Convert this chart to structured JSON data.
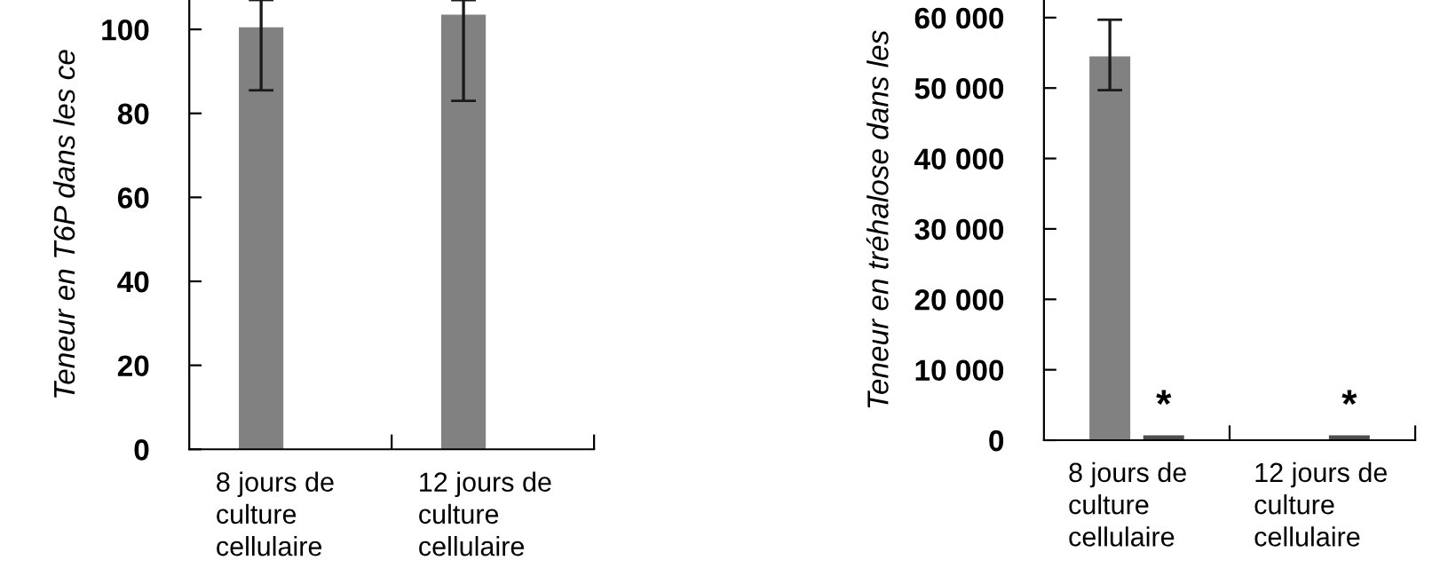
{
  "chart_data": [
    {
      "type": "bar",
      "ylabel": "Teneur en T6P dans les ce",
      "categories": [
        "8 jours de\nculture\ncellulaire",
        "12 jours de\nculture\ncellulaire"
      ],
      "series": [
        {
          "color": "#818181",
          "values": [
            100.5,
            103.5
          ],
          "errors": [
            [
              85.5,
              107
            ],
            [
              83,
              107
            ]
          ]
        },
        {
          "color": "#4e4e4e",
          "values": [
            null,
            null
          ]
        }
      ],
      "ylim": [
        0,
        107
      ],
      "yticks": [
        0,
        20,
        40,
        60,
        80,
        100
      ],
      "grid": false
    },
    {
      "type": "bar",
      "ylabel": "Teneur en tréhalose dans les",
      "categories": [
        "8 jours de\nculture\ncellulaire",
        "12 jours de\nculture\ncellulaire"
      ],
      "series": [
        {
          "color": "#818181",
          "values": [
            54500,
            null
          ],
          "errors": [
            [
              49700,
              59700
            ],
            null
          ]
        },
        {
          "color": "#4e4e4e",
          "values": [
            700,
            700
          ]
        }
      ],
      "annotations": [
        {
          "text": "*",
          "x": "8 jours de\nculture\ncellulaire",
          "y": 700
        },
        {
          "text": "*",
          "x": "12 jours de\nculture\ncellulaire",
          "y": 700
        }
      ],
      "ylim": [
        0,
        62500
      ],
      "yticks": [
        0,
        {
          "value": 10000,
          "label": "10 000"
        },
        {
          "value": 20000,
          "label": "20 000"
        },
        {
          "value": 30000,
          "label": "30 000"
        },
        {
          "value": 40000,
          "label": "40 000"
        },
        {
          "value": 50000,
          "label": "50 000"
        },
        {
          "value": 60000,
          "label": "60 000"
        }
      ],
      "grid": false
    }
  ]
}
